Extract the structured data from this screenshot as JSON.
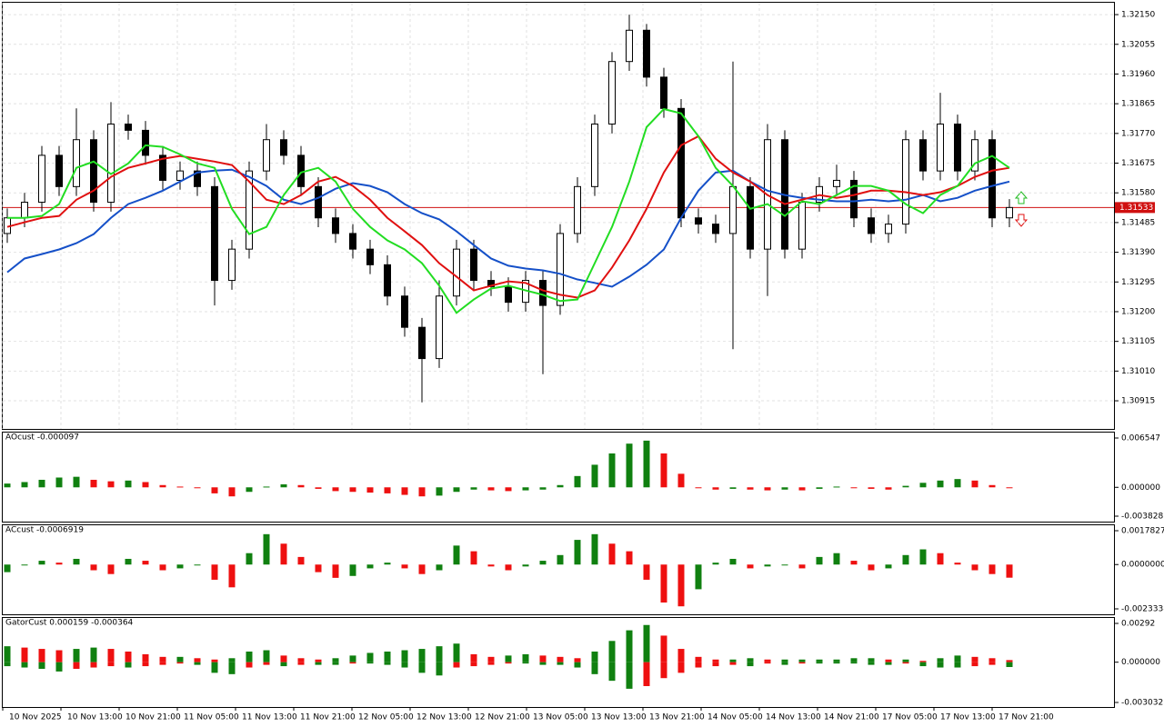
{
  "chart_data": [
    {
      "type": "candlestick",
      "open": [
        1.3145,
        1.315,
        1.3155,
        1.317,
        1.316,
        1.3175,
        1.3155,
        1.318,
        1.3178,
        1.317,
        1.3162,
        1.3165,
        1.316,
        1.313,
        1.314,
        1.3165,
        1.3175,
        1.317,
        1.316,
        1.315,
        1.3145,
        1.314,
        1.3135,
        1.3125,
        1.3115,
        1.3105,
        1.3125,
        1.314,
        1.313,
        1.3128,
        1.3123,
        1.313,
        1.3122,
        1.3145,
        1.316,
        1.318,
        1.32,
        1.321,
        1.3195,
        1.3185,
        1.315,
        1.3148,
        1.3145,
        1.316,
        1.314,
        1.3175,
        1.314,
        1.3155,
        1.316,
        1.3162,
        1.315,
        1.3145,
        1.3148,
        1.3175,
        1.3165,
        1.318,
        1.3165,
        1.3175,
        1.315
      ],
      "high": [
        1.3153,
        1.3158,
        1.3173,
        1.3173,
        1.3185,
        1.3178,
        1.3187,
        1.3183,
        1.3181,
        1.3173,
        1.3168,
        1.3168,
        1.3163,
        1.3143,
        1.3168,
        1.318,
        1.3178,
        1.3173,
        1.3163,
        1.3153,
        1.3148,
        1.3143,
        1.3138,
        1.3128,
        1.3118,
        1.313,
        1.3143,
        1.3143,
        1.3133,
        1.3131,
        1.3133,
        1.3133,
        1.3148,
        1.3163,
        1.3183,
        1.3203,
        1.3215,
        1.3212,
        1.3198,
        1.3188,
        1.3153,
        1.3151,
        1.32,
        1.3163,
        1.318,
        1.3178,
        1.3158,
        1.3163,
        1.3167,
        1.3165,
        1.3153,
        1.3151,
        1.3178,
        1.3178,
        1.319,
        1.3183,
        1.3178,
        1.3178,
        1.3156
      ],
      "low": [
        1.3142,
        1.3147,
        1.3152,
        1.3157,
        1.3157,
        1.3152,
        1.3152,
        1.3175,
        1.3167,
        1.3159,
        1.3159,
        1.3157,
        1.3122,
        1.3127,
        1.3137,
        1.3162,
        1.3167,
        1.3157,
        1.3147,
        1.3142,
        1.3137,
        1.3132,
        1.3122,
        1.3112,
        1.3091,
        1.3102,
        1.3122,
        1.3127,
        1.3125,
        1.312,
        1.312,
        1.31,
        1.3119,
        1.3142,
        1.3157,
        1.3177,
        1.3197,
        1.3192,
        1.3182,
        1.3147,
        1.3145,
        1.3142,
        1.3108,
        1.3137,
        1.3125,
        1.3137,
        1.3137,
        1.3152,
        1.3157,
        1.3147,
        1.3142,
        1.3142,
        1.3145,
        1.3162,
        1.3162,
        1.3162,
        1.3162,
        1.3147,
        1.3147
      ],
      "close": [
        1.315,
        1.3155,
        1.317,
        1.316,
        1.3175,
        1.3155,
        1.318,
        1.3178,
        1.317,
        1.3162,
        1.3165,
        1.316,
        1.313,
        1.314,
        1.3165,
        1.3175,
        1.317,
        1.316,
        1.315,
        1.3145,
        1.314,
        1.3135,
        1.3125,
        1.3115,
        1.3105,
        1.3125,
        1.314,
        1.313,
        1.3128,
        1.3123,
        1.313,
        1.3122,
        1.3145,
        1.316,
        1.318,
        1.32,
        1.321,
        1.3195,
        1.3185,
        1.315,
        1.3148,
        1.3145,
        1.316,
        1.314,
        1.3175,
        1.314,
        1.3155,
        1.316,
        1.3162,
        1.315,
        1.3145,
        1.3148,
        1.3175,
        1.3165,
        1.318,
        1.3165,
        1.3175,
        1.315,
        1.31533
      ],
      "series": [
        {
          "color": "#1550c8",
          "values": [
            1.31326,
            1.3137,
            1.31384,
            1.31399,
            1.31419,
            1.31448,
            1.315,
            1.31544,
            1.31564,
            1.31587,
            1.31616,
            1.31645,
            1.31651,
            1.31654,
            1.31631,
            1.31602,
            1.31558,
            1.31544,
            1.31564,
            1.31593,
            1.31611,
            1.31602,
            1.31582,
            1.31544,
            1.31515,
            1.31495,
            1.31457,
            1.31413,
            1.3137,
            1.31347,
            1.31338,
            1.31332,
            1.31321,
            1.31303,
            1.31292,
            1.3128,
            1.31312,
            1.3135,
            1.31399,
            1.315,
            1.31587,
            1.31645,
            1.31651,
            1.31616,
            1.31587,
            1.31573,
            1.31564,
            1.31558,
            1.31553,
            1.31553,
            1.31558,
            1.31553,
            1.31558,
            1.31573,
            1.31553,
            1.31564,
            1.31587,
            1.31602,
            1.31616
          ]
        },
        {
          "color": "#e01010",
          "values": [
            1.31471,
            1.31486,
            1.315,
            1.31506,
            1.31558,
            1.31587,
            1.31631,
            1.3166,
            1.31674,
            1.31689,
            1.31698,
            1.31689,
            1.3168,
            1.31669,
            1.31616,
            1.31558,
            1.31544,
            1.31573,
            1.31616,
            1.31631,
            1.31602,
            1.31558,
            1.315,
            1.31457,
            1.31413,
            1.31355,
            1.31312,
            1.31268,
            1.31283,
            1.31297,
            1.31292,
            1.31268,
            1.31254,
            1.31245,
            1.31268,
            1.31341,
            1.31428,
            1.31529,
            1.31645,
            1.31732,
            1.31761,
            1.31689,
            1.31645,
            1.31616,
            1.31573,
            1.31544,
            1.31558,
            1.31573,
            1.31564,
            1.31573,
            1.31587,
            1.31587,
            1.31582,
            1.31573,
            1.31582,
            1.31602,
            1.31631,
            1.31651,
            1.3166
          ]
        },
        {
          "color": "#22dd22",
          "values": [
            1.315,
            1.315,
            1.31506,
            1.31544,
            1.3166,
            1.3168,
            1.3164,
            1.31674,
            1.31732,
            1.31727,
            1.31703,
            1.31674,
            1.3166,
            1.31529,
            1.31448,
            1.31471,
            1.31573,
            1.31645,
            1.3166,
            1.31616,
            1.31529,
            1.31471,
            1.31428,
            1.31399,
            1.31355,
            1.31283,
            1.31196,
            1.31239,
            1.31274,
            1.31283,
            1.31268,
            1.31254,
            1.31234,
            1.31239,
            1.31355,
            1.31471,
            1.31616,
            1.3179,
            1.31848,
            1.31834,
            1.31761,
            1.3166,
            1.31602,
            1.31529,
            1.31544,
            1.31506,
            1.31553,
            1.31544,
            1.31573,
            1.31602,
            1.31602,
            1.31587,
            1.31544,
            1.31515,
            1.31573,
            1.31602,
            1.31674,
            1.31698,
            1.3166
          ]
        }
      ],
      "ylim": [
        1.30825,
        1.32188
      ],
      "yticks": [
        {
          "value": 1.3215,
          "label": "1.32150"
        },
        {
          "value": 1.32055,
          "label": "1.32055"
        },
        {
          "value": 1.3196,
          "label": "1.31960"
        },
        {
          "value": 1.31865,
          "label": "1.31865"
        },
        {
          "value": 1.3177,
          "label": "1.31770"
        },
        {
          "value": 1.31675,
          "label": "1.31675"
        },
        {
          "value": 1.3158,
          "label": "1.31580"
        },
        {
          "value": 1.31485,
          "label": "1.31485"
        },
        {
          "value": 1.3139,
          "label": "1.31390"
        },
        {
          "value": 1.31295,
          "label": "1.31295"
        },
        {
          "value": 1.312,
          "label": "1.31200"
        },
        {
          "value": 1.31105,
          "label": "1.31105"
        },
        {
          "value": 1.3101,
          "label": "1.31010"
        },
        {
          "value": 1.30915,
          "label": "1.30915"
        }
      ],
      "current_price": 1.31533,
      "grid": true,
      "xlabels": [
        "10 Nov 2025",
        "10 Nov 13:00",
        "10 Nov 21:00",
        "11 Nov 05:00",
        "11 Nov 13:00",
        "11 Nov 21:00",
        "12 Nov 05:00",
        "12 Nov 13:00",
        "12 Nov 21:00",
        "13 Nov 05:00",
        "13 Nov 13:00",
        "13 Nov 21:00",
        "14 Nov 05:00",
        "14 Nov 13:00",
        "14 Nov 21:00",
        "17 Nov 05:00",
        "17 Nov 13:00",
        "17 Nov 21:00"
      ]
    },
    {
      "type": "bar",
      "title": "AOcust -0.000097",
      "up_color": "#108010",
      "down_color": "#ee1010",
      "values": [
        0.0005,
        0.0007,
        0.001,
        0.0013,
        0.0014,
        0.001,
        0.0008,
        0.0009,
        0.0007,
        0.0003,
        0.0001,
        0.0,
        -0.0008,
        -0.0012,
        -0.0006,
        0.0001,
        0.0004,
        0.0003,
        -0.0002,
        -0.0005,
        -0.0006,
        -0.0007,
        -0.0008,
        -0.001,
        -0.0012,
        -0.0011,
        -0.0006,
        -0.0003,
        -0.0004,
        -0.0005,
        -0.0004,
        -0.0003,
        0.0003,
        0.0015,
        0.003,
        0.0045,
        0.0058,
        0.0062,
        0.0045,
        0.0018,
        -0.0001,
        -0.0003,
        -0.0002,
        -0.0003,
        -0.0004,
        -0.0003,
        -0.0004,
        -0.0002,
        0.0001,
        0.0,
        -0.0002,
        -0.0003,
        0.0002,
        0.0006,
        0.0009,
        0.0011,
        0.0009,
        0.0003,
        -9.7e-05
      ],
      "ylim": [
        -0.003828,
        0.006547
      ],
      "yticks": [
        0.006547,
        {
          "value": 0,
          "label": "0.000000"
        },
        -0.003828
      ]
    },
    {
      "type": "bar",
      "title": "ACcust -0.0006919",
      "up_color": "#108010",
      "down_color": "#ee1010",
      "values": [
        -0.0004,
        0.0,
        0.0002,
        0.0001,
        0.0003,
        -0.0003,
        -0.0005,
        0.0003,
        0.0002,
        -0.0003,
        -0.0002,
        0.0,
        -0.0008,
        -0.0012,
        0.0006,
        0.0016,
        0.0011,
        0.0004,
        -0.0004,
        -0.0007,
        -0.0006,
        -0.0002,
        0.0001,
        -0.0002,
        -0.0005,
        -0.0003,
        0.001,
        0.0007,
        -0.0001,
        -0.0003,
        -0.0001,
        0.0002,
        0.0005,
        0.0013,
        0.0016,
        0.0011,
        0.0007,
        -0.0008,
        -0.002,
        -0.0022,
        -0.0013,
        0.0001,
        0.0003,
        -0.0002,
        -0.0001,
        0.0,
        -0.0002,
        0.0004,
        0.0006,
        0.0002,
        -0.0003,
        -0.0002,
        0.0005,
        0.0008,
        0.0006,
        0.0001,
        -0.0003,
        -0.0005,
        -0.0006919
      ],
      "ylim": [
        -0.0023338,
        0.0017827
      ],
      "yticks": [
        0.0017827,
        {
          "value": 0,
          "label": "0.0000000"
        },
        -0.0023338
      ]
    },
    {
      "type": "gator",
      "title": "GatorCust 0.000159 -0.000364",
      "up_color": "#108010",
      "down_color": "#ee1010",
      "upper": [
        0.0012,
        0.0011,
        0.001,
        0.0009,
        0.001,
        0.0011,
        0.001,
        0.0008,
        0.0006,
        0.0004,
        0.0004,
        0.0003,
        0.0002,
        0.0003,
        0.0008,
        0.0009,
        0.0005,
        0.0003,
        0.0002,
        0.0003,
        0.0005,
        0.0007,
        0.0008,
        0.0009,
        0.001,
        0.0012,
        0.0014,
        0.0006,
        0.0004,
        0.0005,
        0.0006,
        0.0005,
        0.0004,
        0.0003,
        0.0008,
        0.0016,
        0.0024,
        0.0028,
        0.002,
        0.001,
        0.0004,
        0.0002,
        0.0002,
        0.0003,
        0.0002,
        0.0002,
        0.0002,
        0.0002,
        0.0002,
        0.0003,
        0.0003,
        0.0002,
        0.0002,
        0.0001,
        0.0003,
        0.0005,
        0.0004,
        0.0003,
        0.000159
      ],
      "lower": [
        -0.0003,
        -0.0004,
        -0.0005,
        -0.0007,
        -0.0005,
        -0.0004,
        -0.0003,
        -0.0004,
        -0.0003,
        -0.0002,
        -0.0001,
        -0.0002,
        -0.0008,
        -0.0009,
        -0.0004,
        -0.0002,
        -0.0003,
        -0.0002,
        -0.0002,
        -0.0002,
        -0.0001,
        -0.0001,
        -0.0002,
        -0.0004,
        -0.0008,
        -0.001,
        -0.0004,
        -0.0003,
        -0.0002,
        -0.0001,
        -0.0001,
        -0.0002,
        -0.0002,
        -0.0004,
        -0.0009,
        -0.0014,
        -0.002,
        -0.0018,
        -0.0012,
        -0.0008,
        -0.0004,
        -0.0003,
        -0.0002,
        -0.0003,
        -0.0001,
        -0.0002,
        -0.0001,
        -0.0001,
        -0.0001,
        -0.0001,
        -0.0002,
        -0.0002,
        -0.0001,
        -0.0003,
        -0.0004,
        -0.0004,
        -0.0003,
        -0.0002,
        -0.000364
      ],
      "ylim": [
        -0.003032,
        0.00292
      ],
      "yticks": [
        0.00292,
        {
          "value": 0,
          "label": "0.000000"
        },
        -0.003032
      ]
    }
  ]
}
